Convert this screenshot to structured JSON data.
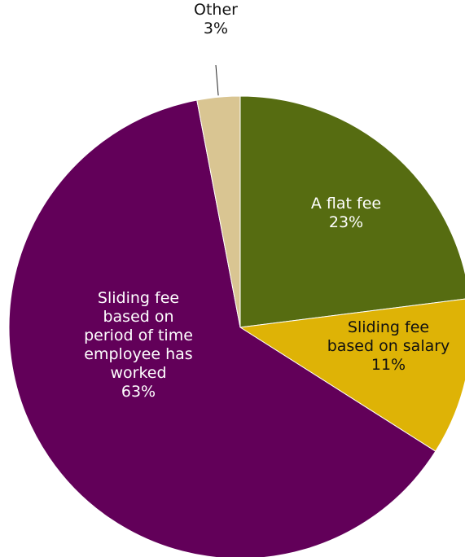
{
  "chart_data": {
    "type": "pie",
    "start_angle_deg": 0,
    "direction": "clockwise",
    "slices": [
      {
        "name_lines": [
          "A flat fee"
        ],
        "value": 23,
        "value_label": "23%",
        "color": "#566c11",
        "text_color": "#ffffff"
      },
      {
        "name_lines": [
          "Sliding fee",
          "based on salary"
        ],
        "value": 11,
        "value_label": "11%",
        "color": "#deb306",
        "text_color": "#111111"
      },
      {
        "name_lines": [
          "Sliding fee",
          "based on",
          "period of time",
          "employee has",
          "worked"
        ],
        "value": 63,
        "value_label": "63%",
        "color": "#620059",
        "text_color": "#ffffff"
      },
      {
        "name_lines": [
          "Other"
        ],
        "value": 3,
        "value_label": "3%",
        "color": "#d9c592",
        "text_color": "#111111",
        "label_outside": true
      }
    ]
  }
}
